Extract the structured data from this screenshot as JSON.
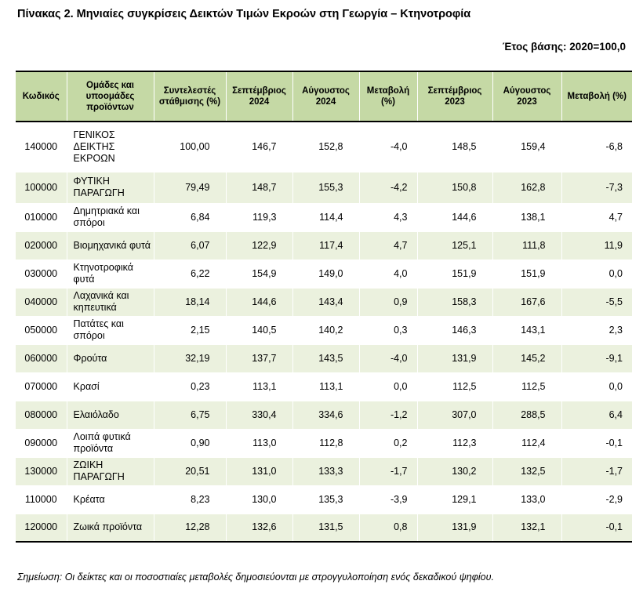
{
  "title": "Πίνακας 2. Μηνιαίες συγκρίσεις Δεικτών Τιμών Εκροών στη Γεωργία – Κτηνοτροφία",
  "base_year": "Έτος βάσης: 2020=100,0",
  "headers": {
    "code": "Κωδικός",
    "group": "Ομάδες και υποομάδες προϊόντων",
    "weight": "Συντελεστές στάθμισης (%)",
    "sep2024": "Σεπτέμβριος 2024",
    "aug2024": "Αύγουστος 2024",
    "chg2024": "Μεταβολή (%)",
    "sep2023": "Σεπτέμβριος 2023",
    "aug2023": "Αύγουστος 2023",
    "chg2023": "Μεταβολή (%)"
  },
  "rows": [
    {
      "code": "140000",
      "name": "ΓΕΝΙΚΟΣ ΔΕΙΚΤΗΣ ΕΚΡΟΩΝ",
      "weight": "100,00",
      "sep2024": "146,7",
      "aug2024": "152,8",
      "chg2024": "-4,0",
      "sep2023": "148,5",
      "aug2023": "159,4",
      "chg2023": "-6,8"
    },
    {
      "code": "100000",
      "name": "ΦΥΤΙΚΗ ΠΑΡΑΓΩΓΗ",
      "weight": "79,49",
      "sep2024": "148,7",
      "aug2024": "155,3",
      "chg2024": "-4,2",
      "sep2023": "150,8",
      "aug2023": "162,8",
      "chg2023": "-7,3"
    },
    {
      "code": "010000",
      "name": "Δημητριακά και σπόροι",
      "weight": "6,84",
      "sep2024": "119,3",
      "aug2024": "114,4",
      "chg2024": "4,3",
      "sep2023": "144,6",
      "aug2023": "138,1",
      "chg2023": "4,7"
    },
    {
      "code": "020000",
      "name": "Βιομηχανικά φυτά",
      "weight": "6,07",
      "sep2024": "122,9",
      "aug2024": "117,4",
      "chg2024": "4,7",
      "sep2023": "125,1",
      "aug2023": "111,8",
      "chg2023": "11,9"
    },
    {
      "code": "030000",
      "name": "Κτηνοτροφικά φυτά",
      "weight": "6,22",
      "sep2024": "154,9",
      "aug2024": "149,0",
      "chg2024": "4,0",
      "sep2023": "151,9",
      "aug2023": "151,9",
      "chg2023": "0,0"
    },
    {
      "code": "040000",
      "name": "Λαχανικά και κηπευτικά",
      "weight": "18,14",
      "sep2024": "144,6",
      "aug2024": "143,4",
      "chg2024": "0,9",
      "sep2023": "158,3",
      "aug2023": "167,6",
      "chg2023": "-5,5"
    },
    {
      "code": "050000",
      "name": "Πατάτες και σπόροι",
      "weight": "2,15",
      "sep2024": "140,5",
      "aug2024": "140,2",
      "chg2024": "0,3",
      "sep2023": "146,3",
      "aug2023": "143,1",
      "chg2023": "2,3"
    },
    {
      "code": "060000",
      "name": "Φρούτα",
      "weight": "32,19",
      "sep2024": "137,7",
      "aug2024": "143,5",
      "chg2024": "-4,0",
      "sep2023": "131,9",
      "aug2023": "145,2",
      "chg2023": "-9,1"
    },
    {
      "code": "070000",
      "name": "Κρασί",
      "weight": "0,23",
      "sep2024": "113,1",
      "aug2024": "113,1",
      "chg2024": "0,0",
      "sep2023": "112,5",
      "aug2023": "112,5",
      "chg2023": "0,0"
    },
    {
      "code": "080000",
      "name": "Ελαιόλαδο",
      "weight": "6,75",
      "sep2024": "330,4",
      "aug2024": "334,6",
      "chg2024": "-1,2",
      "sep2023": "307,0",
      "aug2023": "288,5",
      "chg2023": "6,4"
    },
    {
      "code": "090000",
      "name": "Λοιπά φυτικά προϊόντα",
      "weight": "0,90",
      "sep2024": "113,0",
      "aug2024": "112,8",
      "chg2024": "0,2",
      "sep2023": "112,3",
      "aug2023": "112,4",
      "chg2023": "-0,1"
    },
    {
      "code": "130000",
      "name": "ΖΩΙΚΗ ΠΑΡΑΓΩΓΗ",
      "weight": "20,51",
      "sep2024": "131,0",
      "aug2024": "133,3",
      "chg2024": "-1,7",
      "sep2023": "130,2",
      "aug2023": "132,5",
      "chg2023": "-1,7"
    },
    {
      "code": "110000",
      "name": "Κρέατα",
      "weight": "8,23",
      "sep2024": "130,0",
      "aug2024": "135,3",
      "chg2024": "-3,9",
      "sep2023": "129,1",
      "aug2023": "133,0",
      "chg2023": "-2,9"
    },
    {
      "code": "120000",
      "name": "Ζωικά προϊόντα",
      "weight": "12,28",
      "sep2024": "132,6",
      "aug2024": "131,5",
      "chg2024": "0,8",
      "sep2023": "131,9",
      "aug2023": "132,1",
      "chg2023": "-0,1"
    }
  ],
  "note": "Σημείωση: Οι δείκτες και οι ποσοστιαίες μεταβολές δημοσιεύονται με στρογγυλοποίηση ενός δεκαδικού ψηφίου.",
  "colors": {
    "header_bg": "#c5d9a5",
    "alt_row_bg": "#ebf1de"
  }
}
